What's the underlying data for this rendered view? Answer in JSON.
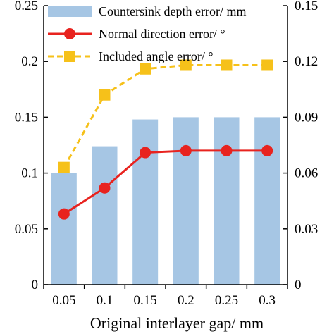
{
  "chart_data": {
    "type": "bar+line",
    "categories": [
      "0.05",
      "0.1",
      "0.15",
      "0.2",
      "0.25",
      "0.3"
    ],
    "xlabel": "Original interlayer gap/ mm",
    "y_left": {
      "range": [
        0,
        0.25
      ],
      "ticks": [
        "0",
        "0.05",
        "0.1",
        "0.15",
        "0.2",
        "0.25"
      ]
    },
    "y_right": {
      "range": [
        0,
        0.15
      ],
      "ticks": [
        "0",
        "0.03",
        "0.06",
        "0.09",
        "0.12",
        "0.15"
      ]
    },
    "series": [
      {
        "name": "Countersink depth error/ mm",
        "kind": "bar",
        "axis": "left",
        "color": "#a6c6e4",
        "values": [
          0.1,
          0.124,
          0.148,
          0.15,
          0.15,
          0.15
        ]
      },
      {
        "name": "Normal direction error/ °",
        "kind": "line",
        "axis": "right",
        "color": "#e8231f",
        "marker": "circle",
        "dash": "solid",
        "values": [
          0.038,
          0.052,
          0.071,
          0.072,
          0.072,
          0.072
        ]
      },
      {
        "name": "Included angle error/ °",
        "kind": "line",
        "axis": "right",
        "color": "#f6c11a",
        "marker": "square",
        "dash": "dashed",
        "values": [
          0.063,
          0.102,
          0.116,
          0.118,
          0.118,
          0.118
        ]
      }
    ],
    "legend_position": "top-left",
    "grid": false
  }
}
